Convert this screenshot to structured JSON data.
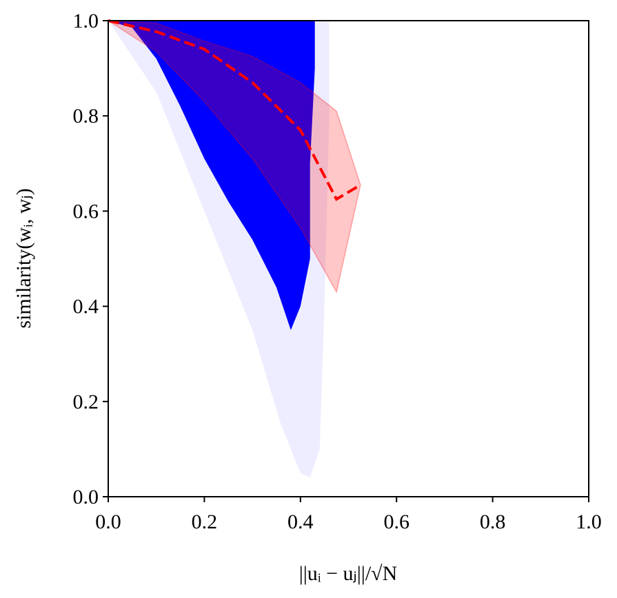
{
  "chart_data": {
    "type": "scatter",
    "xlabel": "||uᵢ − uⱼ||/√N",
    "ylabel": "similarity(wᵢ, wⱼ)",
    "xlim": [
      0,
      1
    ],
    "ylim": [
      0,
      1
    ],
    "xticks": [
      {
        "value": 0,
        "label": "0.0"
      },
      0.2,
      0.4,
      0.6,
      0.8,
      {
        "value": 1,
        "label": "1.0"
      }
    ],
    "yticks": [
      {
        "value": 0,
        "label": "0.0"
      },
      0.2,
      0.4,
      0.6,
      0.8,
      {
        "value": 1,
        "label": "1.0"
      }
    ],
    "regions": [
      {
        "color": "#0000ff",
        "opacity": 0.07,
        "x": [
          0,
          0.1,
          0.2,
          0.3,
          0.36,
          0.4,
          0.42,
          0.44,
          0.45,
          0.46,
          0.46
        ],
        "y": [
          1,
          0.85,
          0.6,
          0.35,
          0.15,
          0.05,
          0.04,
          0.1,
          0.4,
          0.8,
          1
        ]
      },
      {
        "color": "#0000ff",
        "opacity": 1,
        "x": [
          0,
          0.05,
          0.1,
          0.15,
          0.2,
          0.25,
          0.3,
          0.35,
          0.38,
          0.4,
          0.42,
          0.42,
          0.43,
          0.43
        ],
        "y": [
          1,
          0.985,
          0.92,
          0.82,
          0.71,
          0.62,
          0.54,
          0.44,
          0.35,
          0.4,
          0.5,
          0.7,
          0.9,
          1
        ]
      }
    ],
    "band": {
      "color": "#ff0000",
      "opacity": 0.22,
      "x": [
        0,
        0.1,
        0.2,
        0.3,
        0.4,
        0.475,
        0.525
      ],
      "upper": [
        1,
        0.995,
        0.957,
        0.925,
        0.87,
        0.81,
        0.655
      ],
      "lower": [
        1,
        0.935,
        0.83,
        0.71,
        0.565,
        0.43,
        0.655
      ]
    },
    "line": {
      "color": "#ff0000",
      "x": [
        0,
        0.1,
        0.2,
        0.3,
        0.4,
        0.475,
        0.525
      ],
      "values": [
        1,
        0.977,
        0.94,
        0.87,
        0.77,
        0.625,
        0.655
      ]
    }
  }
}
